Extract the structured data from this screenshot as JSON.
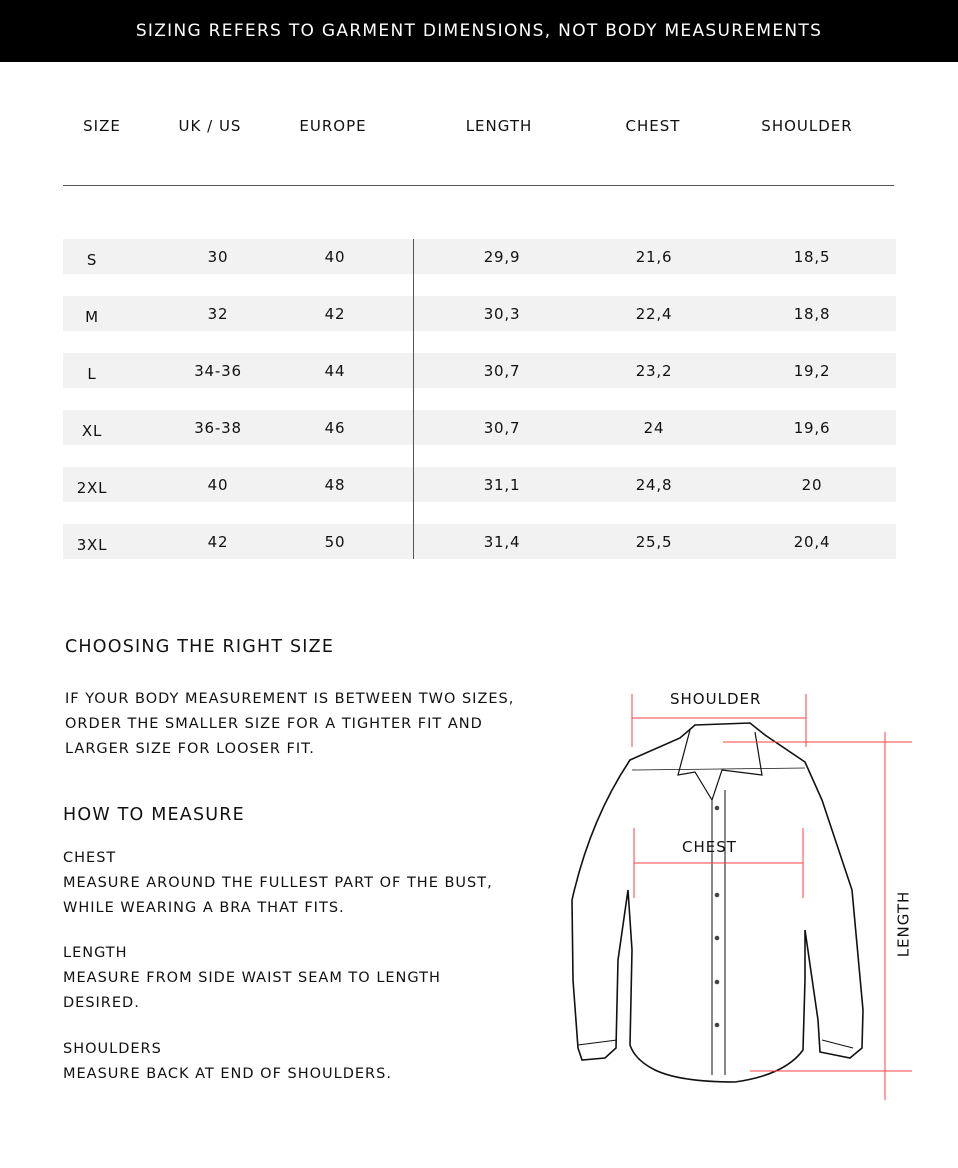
{
  "banner": "SIZING REFERS TO GARMENT DIMENSIONS, NOT BODY MEASUREMENTS",
  "table": {
    "headers": [
      "SIZE",
      "UK / US",
      "EUROPE",
      "LENGTH",
      "CHEST",
      "SHOULDER"
    ],
    "rows": [
      [
        "S",
        "30",
        "40",
        "29,9",
        "21,6",
        "18,5"
      ],
      [
        "M",
        "32",
        "42",
        "30,3",
        "22,4",
        "18,8"
      ],
      [
        "L",
        "34-36",
        "44",
        "30,7",
        "23,2",
        "19,2"
      ],
      [
        "XL",
        "36-38",
        "46",
        "30,7",
        "24",
        "19,6"
      ],
      [
        "2XL",
        "40",
        "48",
        "31,1",
        "24,8",
        "20"
      ],
      [
        "3XL",
        "42",
        "50",
        "31,4",
        "25,5",
        "20,4"
      ]
    ]
  },
  "choosing": {
    "title": "CHOOSING THE RIGHT SIZE",
    "lines": [
      "IF YOUR BODY MEASUREMENT IS BETWEEN TWO SIZES,",
      "ORDER THE SMALLER SIZE FOR A TIGHTER FIT AND",
      "LARGER SIZE FOR LOOSER FIT."
    ]
  },
  "measure": {
    "title": "HOW TO MEASURE",
    "items": [
      {
        "label": "CHEST",
        "lines": [
          "MEASURE AROUND THE FULLEST PART OF THE BUST,",
          "WHILE WEARING A BRA THAT FITS."
        ]
      },
      {
        "label": "LENGTH",
        "lines": [
          "MEASURE FROM SIDE WAIST SEAM TO LENGTH",
          "DESIRED."
        ]
      },
      {
        "label": "SHOULDERS",
        "lines": [
          "MEASURE BACK AT END OF SHOULDERS."
        ]
      }
    ]
  },
  "diagram": {
    "shoulder": "SHOULDER",
    "chest": "CHEST",
    "length": "LENGTH",
    "line_color": "#ff4040"
  }
}
